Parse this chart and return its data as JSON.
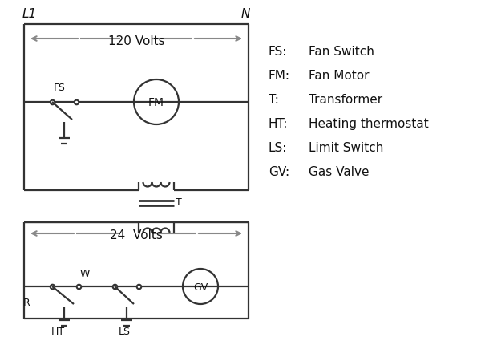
{
  "bg_color": "#ffffff",
  "line_color": "#333333",
  "arrow_color": "#888888",
  "text_color": "#111111",
  "legend": [
    [
      "FS:",
      "Fan Switch"
    ],
    [
      "FM:",
      "Fan Motor"
    ],
    [
      "T:",
      "Transformer"
    ],
    [
      "HT:",
      "Heating thermostat"
    ],
    [
      "LS:",
      "Limit Switch"
    ],
    [
      "GV:",
      "Gas Valve"
    ]
  ],
  "l1_label": "L1",
  "n_label": "N",
  "top_volts": "120 Volts",
  "bot_volts": "24  Volts",
  "t_label": "T",
  "r_label": "R",
  "w_label": "W",
  "ht_label": "HT",
  "ls_label": "LS",
  "fs_label": "FS",
  "fm_label": "FM",
  "gv_label": "GV"
}
